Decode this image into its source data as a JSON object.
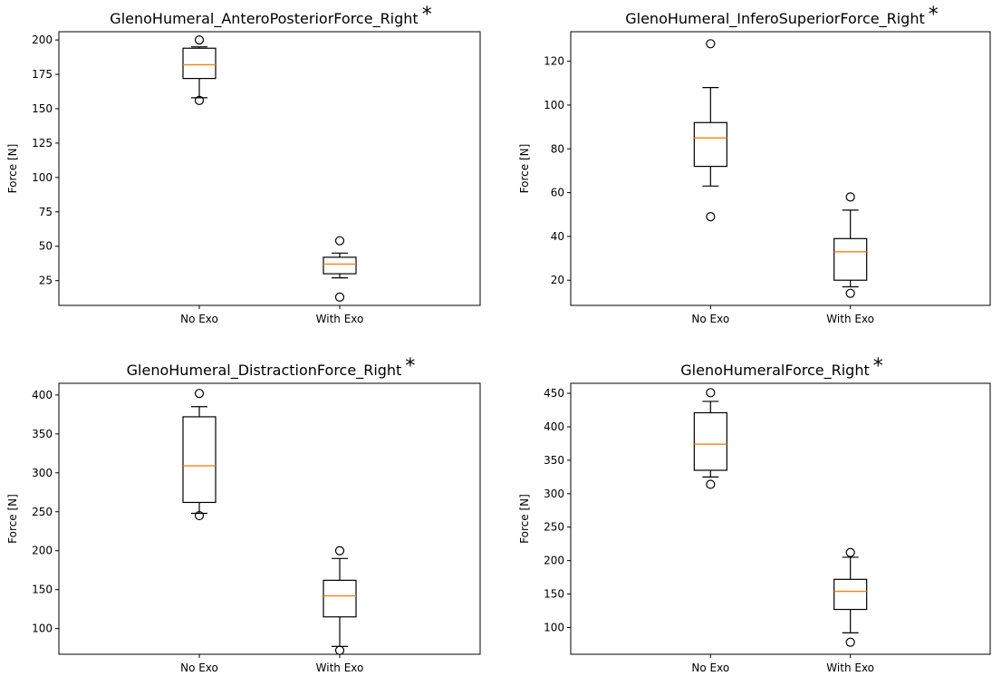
{
  "chart_data": [
    {
      "type": "box",
      "title": "GlenoHumeral_AnteroPosteriorForce_Right",
      "marker": "*",
      "xlabel": "",
      "ylabel": "Force [N]",
      "ylim": [
        7,
        206
      ],
      "yticks": [
        25,
        50,
        75,
        100,
        125,
        150,
        175,
        200
      ],
      "categories": [
        "No Exo",
        "With Exo"
      ],
      "boxes": [
        {
          "whisker_low": 158,
          "q1": 172,
          "median": 182,
          "q3": 194,
          "whisker_high": 195,
          "outliers": [
            156,
            200
          ]
        },
        {
          "whisker_low": 27,
          "q1": 30,
          "median": 37,
          "q3": 42,
          "whisker_high": 45,
          "outliers": [
            13,
            54
          ]
        }
      ]
    },
    {
      "type": "box",
      "title": "GlenoHumeral_InferoSuperiorForce_Right",
      "marker": "*",
      "xlabel": "",
      "ylabel": "Force [N]",
      "ylim": [
        8.5,
        133.5
      ],
      "yticks": [
        20,
        40,
        60,
        80,
        100,
        120
      ],
      "categories": [
        "No Exo",
        "With Exo"
      ],
      "boxes": [
        {
          "whisker_low": 63,
          "q1": 72,
          "median": 85,
          "q3": 92,
          "whisker_high": 108,
          "outliers": [
            49,
            128
          ]
        },
        {
          "whisker_low": 17,
          "q1": 20,
          "median": 33,
          "q3": 39,
          "whisker_high": 52,
          "outliers": [
            14,
            58
          ]
        }
      ]
    },
    {
      "type": "box",
      "title": "GlenoHumeral_DistractionForce_Right",
      "marker": "*",
      "xlabel": "",
      "ylabel": "Force [N]",
      "ylim": [
        67,
        415
      ],
      "yticks": [
        100,
        150,
        200,
        250,
        300,
        350,
        400
      ],
      "categories": [
        "No Exo",
        "With Exo"
      ],
      "boxes": [
        {
          "whisker_low": 248,
          "q1": 262,
          "median": 309,
          "q3": 372,
          "whisker_high": 385,
          "outliers": [
            245,
            402
          ]
        },
        {
          "whisker_low": 77,
          "q1": 115,
          "median": 142,
          "q3": 162,
          "whisker_high": 190,
          "outliers": [
            72,
            200
          ]
        }
      ]
    },
    {
      "type": "box",
      "title": "GlenoHumeralForce_Right",
      "marker": "*",
      "xlabel": "",
      "ylabel": "Force [N]",
      "ylim": [
        60,
        465
      ],
      "yticks": [
        100,
        150,
        200,
        250,
        300,
        350,
        400,
        450
      ],
      "categories": [
        "No Exo",
        "With Exo"
      ],
      "boxes": [
        {
          "whisker_low": 325,
          "q1": 335,
          "median": 374,
          "q3": 421,
          "whisker_high": 438,
          "outliers": [
            314,
            451
          ]
        },
        {
          "whisker_low": 92,
          "q1": 127,
          "median": 154,
          "q3": 172,
          "whisker_high": 205,
          "outliers": [
            78,
            212
          ]
        }
      ]
    }
  ],
  "colors": {
    "box": "#000000",
    "median": "#ff7f0e"
  }
}
